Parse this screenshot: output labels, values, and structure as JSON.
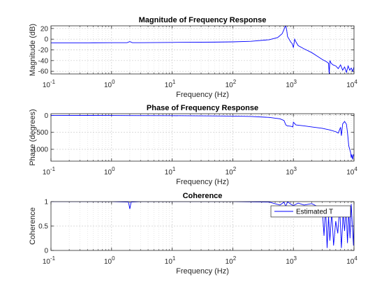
{
  "chart_data": [
    {
      "type": "line",
      "title": "Magnitude of Frequency Response",
      "xlabel": "Frequency (Hz)",
      "ylabel": "Magnitude (dB)",
      "xscale": "log",
      "xlim": [
        0.1,
        10000
      ],
      "ylim": [
        -65,
        25
      ],
      "xticks": [
        0.1,
        1,
        10,
        100,
        1000,
        10000
      ],
      "xtick_labels": [
        [
          "10",
          "-1"
        ],
        [
          "10",
          "0"
        ],
        [
          "10",
          "1"
        ],
        [
          "10",
          "2"
        ],
        [
          "10",
          "3"
        ],
        [
          "10",
          "4"
        ]
      ],
      "yticks": [
        20,
        0,
        -20,
        -40,
        -60
      ],
      "ytick_labels": [
        "20",
        "0",
        "-20",
        "-40",
        "-60"
      ],
      "grid": true,
      "color": "#0000ff",
      "x": [
        0.1,
        0.5,
        1,
        1.8,
        2,
        2.2,
        3,
        10,
        50,
        100,
        200,
        400,
        550,
        650,
        700,
        720,
        750,
        780,
        800,
        850,
        900,
        950,
        980,
        1000,
        1050,
        1100,
        1200,
        1500,
        2000,
        2500,
        3000,
        3500,
        3800,
        3900,
        4000,
        4200,
        4500,
        5000,
        5500,
        6000,
        6500,
        7000,
        7500,
        8000,
        8500,
        9000,
        9500,
        10000
      ],
      "y": [
        -7,
        -6.8,
        -6.5,
        -6.5,
        -4.5,
        -6.5,
        -6.5,
        -6,
        -5.5,
        -5,
        -4,
        -1,
        3,
        10,
        18,
        22,
        25,
        15,
        5,
        0,
        -5,
        -8,
        -12,
        -16,
        0,
        -5,
        -12,
        -18,
        -25,
        -32,
        -38,
        -42,
        -45,
        -65,
        -40,
        -45,
        -48,
        -50,
        -55,
        -48,
        -58,
        -52,
        -62,
        -50,
        -58,
        -54,
        -60,
        -52
      ]
    },
    {
      "type": "line",
      "title": "Phase of Frequency Response",
      "xlabel": "Frequency (Hz)",
      "ylabel": "Phase (degrees)",
      "xscale": "log",
      "xlim": [
        0.1,
        10000
      ],
      "ylim": [
        -1350,
        50
      ],
      "xticks": [
        0.1,
        1,
        10,
        100,
        1000,
        10000
      ],
      "xtick_labels": [
        [
          "10",
          "-1"
        ],
        [
          "10",
          "0"
        ],
        [
          "10",
          "1"
        ],
        [
          "10",
          "2"
        ],
        [
          "10",
          "3"
        ],
        [
          "10",
          "4"
        ]
      ],
      "yticks": [
        0,
        -500,
        -1000
      ],
      "ytick_labels": [
        "0",
        "-500",
        "-1000"
      ],
      "grid": true,
      "color": "#0000ff",
      "x": [
        0.1,
        1,
        2,
        10,
        50,
        100,
        200,
        400,
        600,
        700,
        750,
        780,
        800,
        900,
        950,
        980,
        1000,
        1100,
        1500,
        2000,
        3000,
        4000,
        5000,
        5500,
        6000,
        6200,
        6500,
        7000,
        7500,
        7800,
        8000,
        8200,
        8500,
        8800,
        9000,
        9200,
        9500,
        9800,
        10000
      ],
      "y": [
        0,
        -2,
        -5,
        -8,
        -15,
        -20,
        -30,
        -60,
        -100,
        -150,
        -280,
        -300,
        -310,
        -320,
        -330,
        -340,
        -200,
        -280,
        -310,
        -340,
        -380,
        -430,
        -480,
        -520,
        -350,
        -600,
        -250,
        -180,
        -260,
        -500,
        -700,
        -900,
        -1000,
        -1100,
        -1250,
        -1150,
        -1300,
        -1150,
        -1200
      ]
    },
    {
      "type": "line",
      "title": "Coherence",
      "xlabel": "Frequency (Hz)",
      "ylabel": "Coherence",
      "xscale": "log",
      "xlim": [
        0.1,
        10000
      ],
      "ylim": [
        0,
        1
      ],
      "xticks": [
        0.1,
        1,
        10,
        100,
        1000,
        10000
      ],
      "xtick_labels": [
        [
          "10",
          "-1"
        ],
        [
          "10",
          "0"
        ],
        [
          "10",
          "1"
        ],
        [
          "10",
          "2"
        ],
        [
          "10",
          "3"
        ],
        [
          "10",
          "4"
        ]
      ],
      "yticks": [
        1,
        0.5,
        0
      ],
      "ytick_labels": [
        "1",
        "0.5",
        "0"
      ],
      "grid": true,
      "color": "#0000ff",
      "legend": {
        "entries": [
          "Estimated T"
        ],
        "placement": "top-right"
      },
      "x": [
        0.1,
        1,
        1.9,
        2,
        2.1,
        3,
        10,
        100,
        400,
        600,
        700,
        750,
        800,
        900,
        1000,
        1200,
        1500,
        2000,
        2500,
        3000,
        3200,
        3400,
        3600,
        3800,
        4000,
        4300,
        4600,
        5000,
        5400,
        5800,
        6200,
        6600,
        7000,
        7400,
        7800,
        8200,
        8600,
        9000,
        9400,
        9800,
        10000
      ],
      "y": [
        1,
        1,
        0.99,
        0.85,
        0.99,
        1,
        1,
        1,
        0.99,
        0.93,
        0.99,
        0.9,
        1,
        0.95,
        0.92,
        0.97,
        0.93,
        0.96,
        0.9,
        0.85,
        0.3,
        0.9,
        0.05,
        0.7,
        0.2,
        0.8,
        0.1,
        0.6,
        0.35,
        0.9,
        0.05,
        0.75,
        0.4,
        0.9,
        0.15,
        0.8,
        0.25,
        0.95,
        0.5,
        0.1,
        0.7
      ]
    }
  ]
}
